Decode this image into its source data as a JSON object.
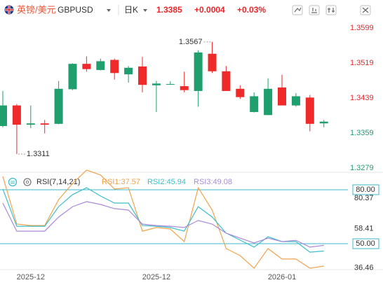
{
  "header": {
    "name": "英镑/美元",
    "symbol": "GBPUSD",
    "period": "日K",
    "last": "1.3385",
    "change": "+0.0004",
    "change_pct": "+0.03%"
  },
  "chart_data": [
    {
      "type": "candlestick",
      "open": [
        1.3375,
        1.3422,
        1.3378,
        1.3381,
        1.338,
        1.3459,
        1.3517,
        1.3503,
        1.3526,
        1.3493,
        1.3511,
        1.3468,
        1.3471,
        1.3466,
        1.3455,
        1.354,
        1.35,
        1.346,
        1.3407,
        1.34,
        1.3463,
        1.3422,
        1.344,
        1.3381
      ],
      "high": [
        1.3455,
        1.3425,
        1.3422,
        1.3389,
        1.3478,
        1.3518,
        1.3534,
        1.3529,
        1.3529,
        1.3512,
        1.3533,
        1.3478,
        1.3477,
        1.3499,
        1.3548,
        1.3567,
        1.3512,
        1.3468,
        1.3452,
        1.3484,
        1.3492,
        1.345,
        1.3446,
        1.3389
      ],
      "low": [
        1.3372,
        1.3311,
        1.337,
        1.3358,
        1.3379,
        1.3457,
        1.3499,
        1.3502,
        1.3481,
        1.3474,
        1.3452,
        1.3407,
        1.3469,
        1.3452,
        1.3419,
        1.3496,
        1.3455,
        1.3437,
        1.3406,
        1.34,
        1.3422,
        1.3419,
        1.3363,
        1.3372
      ],
      "close": [
        1.3422,
        1.3378,
        1.3381,
        1.3378,
        1.346,
        1.3517,
        1.3505,
        1.3523,
        1.3496,
        1.3508,
        1.3469,
        1.3472,
        1.3471,
        1.3457,
        1.3543,
        1.35,
        1.3455,
        1.3441,
        1.3443,
        1.346,
        1.3422,
        1.3443,
        1.338,
        1.3385
      ],
      "up_color": "#1f9e6e",
      "down_color": "#ee2a2a",
      "ylim": [
        1.3271,
        1.3618
      ],
      "yticks": [
        1.3599,
        1.3519,
        1.3439,
        1.3359,
        1.3279
      ],
      "annotations": [
        {
          "text": "1.3567",
          "index": 15,
          "field": "high"
        },
        {
          "text": "1.3311",
          "index": 1,
          "field": "low"
        }
      ]
    },
    {
      "type": "line",
      "title": "RSI(7,14,21)",
      "categories": [
        null,
        null,
        "2025-12",
        null,
        null,
        null,
        null,
        null,
        null,
        null,
        null,
        "2025-12",
        null,
        null,
        null,
        null,
        null,
        null,
        null,
        null,
        "2026-01",
        null,
        null,
        null
      ],
      "series": [
        {
          "name": "RSI1:37.57",
          "color": "#f2a24c",
          "values": [
            87.4,
            60.9,
            60.1,
            60.1,
            74.5,
            83.5,
            90.9,
            88.2,
            80.4,
            81.1,
            57.0,
            59.0,
            58.2,
            51.2,
            81.1,
            68.7,
            47.3,
            43.4,
            36.4,
            47.3,
            41.5,
            41.5,
            36.4,
            37.57
          ]
        },
        {
          "name": "RSI2:45.94",
          "color": "#3cbfca",
          "values": [
            80.4,
            59.7,
            59.7,
            59.7,
            70.6,
            77.3,
            81.1,
            76.5,
            72.6,
            72.6,
            60.1,
            59.7,
            59.0,
            57.0,
            70.6,
            64.8,
            55.9,
            52.0,
            48.1,
            53.9,
            51.2,
            51.2,
            45.3,
            45.94
          ]
        },
        {
          "name": "RSI3:49.08",
          "color": "#a98ad8",
          "values": [
            72.6,
            57.0,
            57.0,
            57.0,
            64.8,
            70.6,
            73.4,
            71.8,
            69.5,
            68.7,
            60.9,
            60.1,
            59.7,
            59.0,
            62.9,
            60.9,
            55.9,
            53.1,
            50.4,
            53.1,
            51.2,
            51.9,
            48.1,
            49.08
          ]
        }
      ],
      "ylim": [
        35.62,
        88.93
      ],
      "yticks": [
        80.37,
        58.41,
        36.46
      ],
      "levels": [
        {
          "value": 80,
          "label": "80.00"
        },
        {
          "value": 50,
          "label": "50.00"
        }
      ],
      "level_color": "#3bb8c9"
    }
  ]
}
